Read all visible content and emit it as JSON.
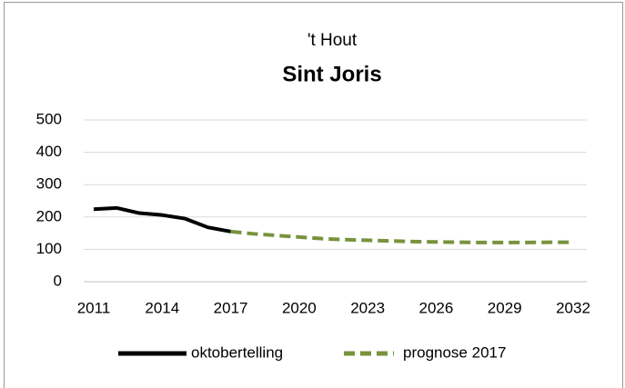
{
  "chart_data": {
    "type": "line",
    "title": "'t Hout",
    "subtitle": "Sint Joris",
    "x": [
      2011,
      2012,
      2013,
      2014,
      2015,
      2016,
      2017,
      2018,
      2019,
      2020,
      2021,
      2022,
      2023,
      2024,
      2025,
      2026,
      2027,
      2028,
      2029,
      2030,
      2031,
      2032
    ],
    "series": [
      {
        "name": "oktobertelling",
        "color": "#000000",
        "dashed": false,
        "values": [
          224,
          228,
          212,
          206,
          195,
          168,
          155,
          null,
          null,
          null,
          null,
          null,
          null,
          null,
          null,
          null,
          null,
          null,
          null,
          null,
          null,
          null
        ]
      },
      {
        "name": "prognose 2017",
        "color": "#77933c",
        "dashed": true,
        "values": [
          null,
          null,
          null,
          null,
          null,
          null,
          155,
          148,
          143,
          138,
          133,
          130,
          128,
          126,
          124,
          123,
          122,
          121,
          121,
          121,
          122,
          122
        ]
      }
    ],
    "xlim": [
      2011,
      2032
    ],
    "xticks": [
      2011,
      2014,
      2017,
      2020,
      2023,
      2026,
      2029,
      2032
    ],
    "ylim": [
      0,
      500
    ],
    "yticks": [
      0,
      100,
      200,
      300,
      400,
      500
    ],
    "grid": true,
    "legend": "bottom"
  }
}
